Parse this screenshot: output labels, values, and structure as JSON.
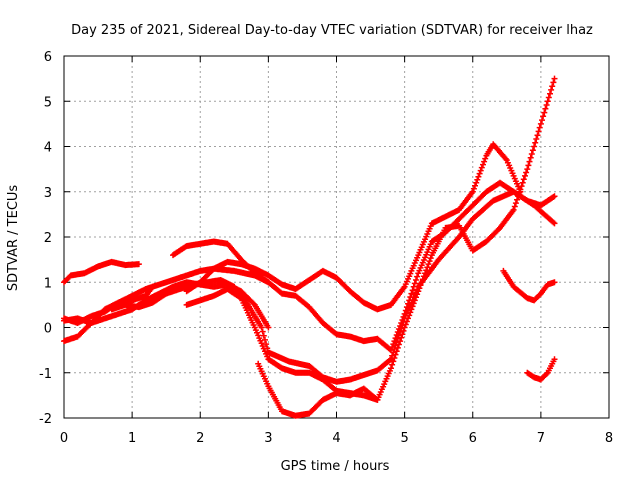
{
  "chart_data": {
    "type": "scatter",
    "title": "Day 235 of 2021, Sidereal Day-to-day VTEC variation (SDTVAR) for receiver lhaz",
    "xlabel": "GPS time / hours",
    "ylabel": "SDTVAR / TECUs",
    "xlim": [
      0,
      8
    ],
    "ylim": [
      -2,
      6
    ],
    "x_ticks": [
      "0",
      "1",
      "2",
      "3",
      "4",
      "5",
      "6",
      "7",
      "8"
    ],
    "y_ticks": [
      "-2",
      "-1",
      "0",
      "1",
      "2",
      "3",
      "4",
      "5",
      "6"
    ],
    "grid": true,
    "marker": "plus",
    "color": "#ff0000",
    "series": [
      {
        "x": [
          0.0,
          0.1,
          0.3,
          0.5,
          0.7,
          0.9,
          1.1
        ],
        "y": [
          1.0,
          1.15,
          1.2,
          1.35,
          1.45,
          1.38,
          1.4
        ]
      },
      {
        "x": [
          0.0,
          0.2,
          0.4,
          0.6,
          0.8,
          1.0,
          1.2,
          1.3
        ],
        "y": [
          -0.3,
          -0.2,
          0.1,
          0.4,
          0.55,
          0.6,
          0.7,
          0.9
        ]
      },
      {
        "x": [
          0.0,
          0.2,
          0.4,
          0.6,
          0.8,
          1.0,
          1.2,
          1.4,
          1.6,
          1.8,
          2.0,
          2.2,
          2.5,
          2.8,
          3.0
        ],
        "y": [
          0.2,
          0.1,
          0.25,
          0.35,
          0.55,
          0.7,
          0.85,
          0.95,
          1.05,
          1.15,
          1.25,
          1.3,
          1.25,
          1.15,
          1.0
        ]
      },
      {
        "x": [
          0.0,
          0.2,
          0.4,
          0.6,
          0.8,
          1.0,
          1.2,
          1.4,
          1.6,
          1.8,
          2.0,
          2.2,
          2.4,
          2.6,
          2.8,
          3.0
        ],
        "y": [
          0.15,
          0.2,
          0.1,
          0.2,
          0.3,
          0.4,
          0.6,
          0.75,
          0.9,
          1.0,
          0.95,
          0.9,
          0.95,
          0.8,
          0.5,
          0.0
        ]
      },
      {
        "x": [
          0.7,
          0.9,
          1.1,
          1.3,
          1.5,
          1.7,
          1.9,
          2.1,
          2.3,
          2.5,
          2.7,
          2.9,
          3.0,
          3.3,
          3.6,
          3.8,
          4.0,
          4.2,
          4.4,
          4.6,
          4.8,
          5.0,
          5.2,
          5.5,
          5.8,
          6.0,
          6.3,
          6.6,
          6.9,
          7.2
        ],
        "y": [
          0.4,
          0.5,
          0.45,
          0.55,
          0.75,
          0.85,
          0.95,
          1.0,
          1.05,
          0.9,
          0.5,
          0.0,
          -0.55,
          -0.75,
          -0.85,
          -1.1,
          -1.2,
          -1.15,
          -1.05,
          -0.95,
          -0.7,
          0.2,
          0.9,
          1.5,
          2.0,
          2.4,
          2.8,
          3.0,
          2.7,
          2.3
        ]
      },
      {
        "x": [
          1.6,
          1.8,
          2.0,
          2.2,
          2.4,
          2.6,
          2.8,
          3.0,
          3.2,
          3.4,
          3.6,
          3.8,
          4.0,
          4.2,
          4.4,
          4.6,
          4.8,
          5.0,
          5.2,
          5.4,
          5.6,
          5.8,
          6.0,
          6.2,
          6.4,
          6.6,
          6.8,
          7.0,
          7.2
        ],
        "y": [
          1.6,
          1.8,
          1.85,
          1.9,
          1.85,
          1.5,
          1.2,
          1.0,
          0.75,
          0.7,
          0.45,
          0.1,
          -0.15,
          -0.2,
          -0.3,
          -0.25,
          -0.5,
          0.3,
          1.2,
          1.9,
          2.1,
          2.4,
          2.7,
          3.0,
          3.2,
          3.0,
          2.8,
          2.7,
          2.9
        ]
      },
      {
        "x": [
          1.8,
          2.0,
          2.2,
          2.4,
          2.6,
          2.8,
          3.0,
          3.2,
          3.4,
          3.6,
          3.8,
          4.0,
          4.2,
          4.4,
          4.6,
          4.8,
          5.0,
          5.2,
          5.4,
          5.6,
          5.8,
          6.0,
          6.2,
          6.3,
          6.5,
          6.7
        ],
        "y": [
          0.8,
          1.0,
          1.3,
          1.45,
          1.4,
          1.3,
          1.15,
          0.95,
          0.85,
          1.05,
          1.25,
          1.1,
          0.8,
          0.55,
          0.4,
          0.5,
          0.9,
          1.6,
          2.3,
          2.45,
          2.6,
          3.0,
          3.8,
          4.05,
          3.7,
          3.0
        ]
      },
      {
        "x": [
          1.8,
          2.0,
          2.2,
          2.4,
          2.6,
          2.8,
          3.0,
          3.2,
          3.4,
          3.6,
          3.8,
          4.0,
          4.2,
          4.4,
          4.6,
          4.8,
          5.0,
          5.2,
          5.4,
          5.6,
          5.8,
          6.0,
          6.2,
          6.4,
          6.6,
          6.8,
          7.0,
          7.2
        ],
        "y": [
          0.5,
          0.6,
          0.7,
          0.85,
          0.65,
          0.0,
          -0.7,
          -0.9,
          -1.0,
          -1.0,
          -1.15,
          -1.4,
          -1.45,
          -1.5,
          -1.6,
          -0.9,
          0.0,
          0.8,
          1.6,
          2.2,
          2.25,
          1.7,
          1.9,
          2.2,
          2.6,
          3.5,
          4.5,
          5.5
        ]
      },
      {
        "x": [
          2.85,
          3.0,
          3.2,
          3.4,
          3.6,
          3.8,
          4.0,
          4.2,
          4.4,
          4.6
        ],
        "y": [
          -0.8,
          -1.3,
          -1.85,
          -1.95,
          -1.9,
          -1.6,
          -1.45,
          -1.5,
          -1.35,
          -1.6
        ]
      },
      {
        "x": [
          6.45,
          6.6,
          6.8,
          6.9,
          7.0,
          7.1,
          7.2
        ],
        "y": [
          1.25,
          0.9,
          0.65,
          0.6,
          0.75,
          0.95,
          1.0
        ]
      },
      {
        "x": [
          6.8,
          6.9,
          7.0,
          7.1,
          7.2
        ],
        "y": [
          -1.0,
          -1.1,
          -1.15,
          -1.0,
          -0.7
        ]
      }
    ]
  }
}
